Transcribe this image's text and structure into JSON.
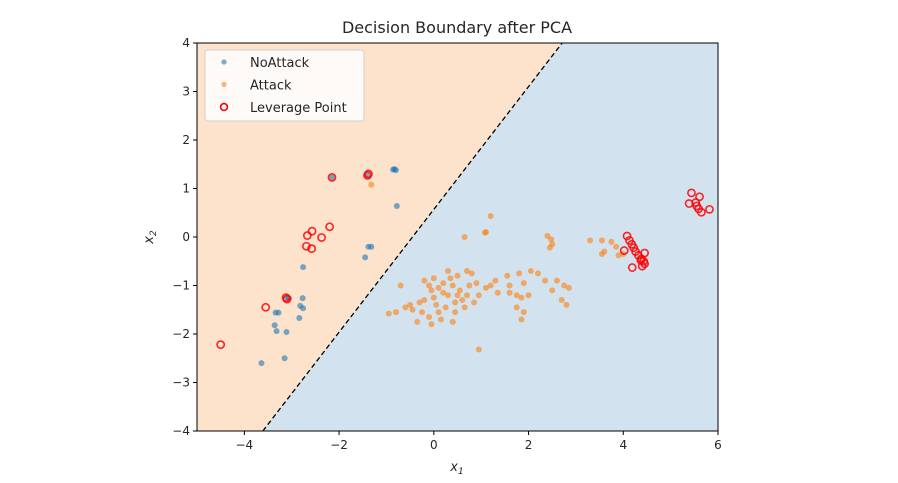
{
  "chart_data": {
    "type": "scatter",
    "title": "Decision Boundary after PCA",
    "xlabel": "x1",
    "ylabel": "x2",
    "xlim": [
      -5,
      6
    ],
    "ylim": [
      -4,
      4
    ],
    "xticks": [
      -4,
      -2,
      0,
      2,
      4,
      6
    ],
    "yticks": [
      -4,
      -3,
      -2,
      -1,
      0,
      1,
      2,
      3,
      4
    ],
    "xtick_labels": [
      "−4",
      "−2",
      "0",
      "2",
      "4",
      "6"
    ],
    "ytick_labels": [
      "−4",
      "−3",
      "−2",
      "−1",
      "0",
      "1",
      "2",
      "3",
      "4"
    ],
    "grid": false,
    "legend_position": "top-left",
    "decision_boundary": {
      "style": "dashed",
      "points": [
        [
          -3.61,
          -4
        ],
        [
          2.71,
          4
        ]
      ],
      "left_region": "NoAttack",
      "right_region": "Attack"
    },
    "colors": {
      "noattack": "#1f77b4",
      "attack": "#ff7f0e",
      "leverage": "#ff0000",
      "region_noattack": "#fde3cc",
      "region_attack": "#d2e3ef"
    },
    "legend": [
      {
        "label": "NoAttack",
        "marker": "dot",
        "color": "#1f77b4"
      },
      {
        "label": "Attack",
        "marker": "dot",
        "color": "#ff7f0e"
      },
      {
        "label": "Leverage Point",
        "marker": "ring",
        "color": "#ff0000"
      }
    ],
    "series": [
      {
        "name": "NoAttack",
        "points": [
          [
            -0.83,
            1.4
          ],
          [
            -0.8,
            1.38
          ],
          [
            -0.86,
            1.39
          ],
          [
            -0.78,
            0.64
          ],
          [
            -1.32,
            -0.2
          ],
          [
            -1.38,
            -0.2
          ],
          [
            -1.45,
            -0.42
          ],
          [
            -2.76,
            -0.62
          ],
          [
            -1.4,
            1.27
          ],
          [
            -2.15,
            1.23
          ],
          [
            -2.77,
            -1.26
          ],
          [
            -2.82,
            -1.42
          ],
          [
            -2.76,
            -1.47
          ],
          [
            -3.34,
            -1.56
          ],
          [
            -3.28,
            -1.56
          ],
          [
            -2.84,
            -1.67
          ],
          [
            -3.36,
            -1.82
          ],
          [
            -3.32,
            -1.94
          ],
          [
            -3.11,
            -1.96
          ],
          [
            -3.15,
            -2.5
          ],
          [
            -3.64,
            -2.6
          ],
          [
            -3.1,
            -1.25
          ],
          [
            -3.06,
            -1.26
          ]
        ]
      },
      {
        "name": "Attack",
        "points": [
          [
            -1.32,
            1.08
          ],
          [
            1.2,
            0.43
          ],
          [
            1.1,
            0.1
          ],
          [
            1.08,
            0.09
          ],
          [
            0.65,
            0.0
          ],
          [
            2.4,
            0.02
          ],
          [
            2.48,
            -0.05
          ],
          [
            2.5,
            -0.15
          ],
          [
            2.45,
            -0.22
          ],
          [
            3.3,
            -0.07
          ],
          [
            3.55,
            -0.07
          ],
          [
            3.75,
            -0.1
          ],
          [
            3.85,
            -0.2
          ],
          [
            3.6,
            -0.3
          ],
          [
            3.55,
            -0.35
          ],
          [
            3.9,
            -0.38
          ],
          [
            4.0,
            -0.35
          ],
          [
            0.0,
            -0.85
          ],
          [
            0.3,
            -0.7
          ],
          [
            0.5,
            -0.8
          ],
          [
            0.7,
            -0.7
          ],
          [
            -0.2,
            -0.9
          ],
          [
            -0.1,
            -1.0
          ],
          [
            0.1,
            -1.05
          ],
          [
            0.2,
            -0.95
          ],
          [
            0.4,
            -1.0
          ],
          [
            0.55,
            -1.1
          ],
          [
            0.75,
            -1.0
          ],
          [
            0.9,
            -0.95
          ],
          [
            1.1,
            -1.05
          ],
          [
            0.95,
            -1.2
          ],
          [
            0.6,
            -1.3
          ],
          [
            0.3,
            -1.2
          ],
          [
            0.0,
            -1.25
          ],
          [
            -0.2,
            -1.3
          ],
          [
            -0.3,
            -1.35
          ],
          [
            -0.5,
            -1.4
          ],
          [
            -0.6,
            -1.45
          ],
          [
            -0.8,
            -1.55
          ],
          [
            -0.95,
            -1.58
          ],
          [
            -0.45,
            -1.5
          ],
          [
            -0.25,
            -1.55
          ],
          [
            0.05,
            -1.4
          ],
          [
            0.25,
            -1.45
          ],
          [
            0.45,
            -1.55
          ],
          [
            0.65,
            -1.45
          ],
          [
            0.85,
            -1.35
          ],
          [
            -0.1,
            -1.65
          ],
          [
            0.15,
            -1.7
          ],
          [
            0.4,
            -1.75
          ],
          [
            -0.35,
            -1.75
          ],
          [
            -0.05,
            -1.8
          ],
          [
            0.1,
            -1.55
          ],
          [
            0.5,
            -1.2
          ],
          [
            0.35,
            -0.85
          ],
          [
            -0.05,
            -1.1
          ],
          [
            0.2,
            -1.15
          ],
          [
            0.45,
            -1.35
          ],
          [
            0.7,
            -1.2
          ],
          [
            1.3,
            -0.9
          ],
          [
            1.55,
            -0.8
          ],
          [
            1.6,
            -1.0
          ],
          [
            1.8,
            -0.75
          ],
          [
            1.9,
            -0.95
          ],
          [
            2.05,
            -0.7
          ],
          [
            2.2,
            -0.75
          ],
          [
            2.35,
            -0.9
          ],
          [
            2.6,
            -0.9
          ],
          [
            2.75,
            -1.0
          ],
          [
            2.85,
            -1.05
          ],
          [
            1.6,
            -1.15
          ],
          [
            1.75,
            -1.2
          ],
          [
            1.85,
            -1.25
          ],
          [
            2.0,
            -1.2
          ],
          [
            2.5,
            -1.1
          ],
          [
            2.7,
            -1.3
          ],
          [
            2.8,
            -1.4
          ],
          [
            1.75,
            -1.45
          ],
          [
            1.9,
            -1.55
          ],
          [
            1.85,
            -1.7
          ],
          [
            0.95,
            -2.32
          ],
          [
            -0.7,
            -1.0
          ],
          [
            1.2,
            -1.0
          ],
          [
            1.35,
            -1.15
          ],
          [
            0.8,
            -0.75
          ]
        ]
      },
      {
        "name": "Leverage Point",
        "points": [
          [
            -4.5,
            -2.22
          ],
          [
            -3.55,
            -1.45
          ],
          [
            -3.12,
            -1.25
          ],
          [
            -3.1,
            -1.28
          ],
          [
            -2.15,
            1.23
          ],
          [
            -1.4,
            1.27
          ],
          [
            -1.38,
            1.3
          ],
          [
            -2.57,
            0.12
          ],
          [
            -2.2,
            0.21
          ],
          [
            -2.37,
            -0.01
          ],
          [
            -2.67,
            0.03
          ],
          [
            -2.69,
            -0.19
          ],
          [
            -2.58,
            -0.24
          ],
          [
            4.08,
            0.02
          ],
          [
            4.13,
            -0.07
          ],
          [
            4.18,
            -0.15
          ],
          [
            4.22,
            -0.22
          ],
          [
            4.26,
            -0.3
          ],
          [
            4.32,
            -0.38
          ],
          [
            4.38,
            -0.45
          ],
          [
            4.43,
            -0.5
          ],
          [
            4.45,
            -0.55
          ],
          [
            4.4,
            -0.6
          ],
          [
            4.37,
            -0.48
          ],
          [
            4.02,
            -0.28
          ],
          [
            4.45,
            -0.33
          ],
          [
            4.19,
            -0.63
          ],
          [
            5.44,
            0.91
          ],
          [
            5.61,
            0.83
          ],
          [
            5.39,
            0.69
          ],
          [
            5.53,
            0.71
          ],
          [
            5.59,
            0.58
          ],
          [
            5.65,
            0.51
          ],
          [
            5.82,
            0.57
          ],
          [
            5.55,
            0.64
          ]
        ]
      }
    ]
  }
}
